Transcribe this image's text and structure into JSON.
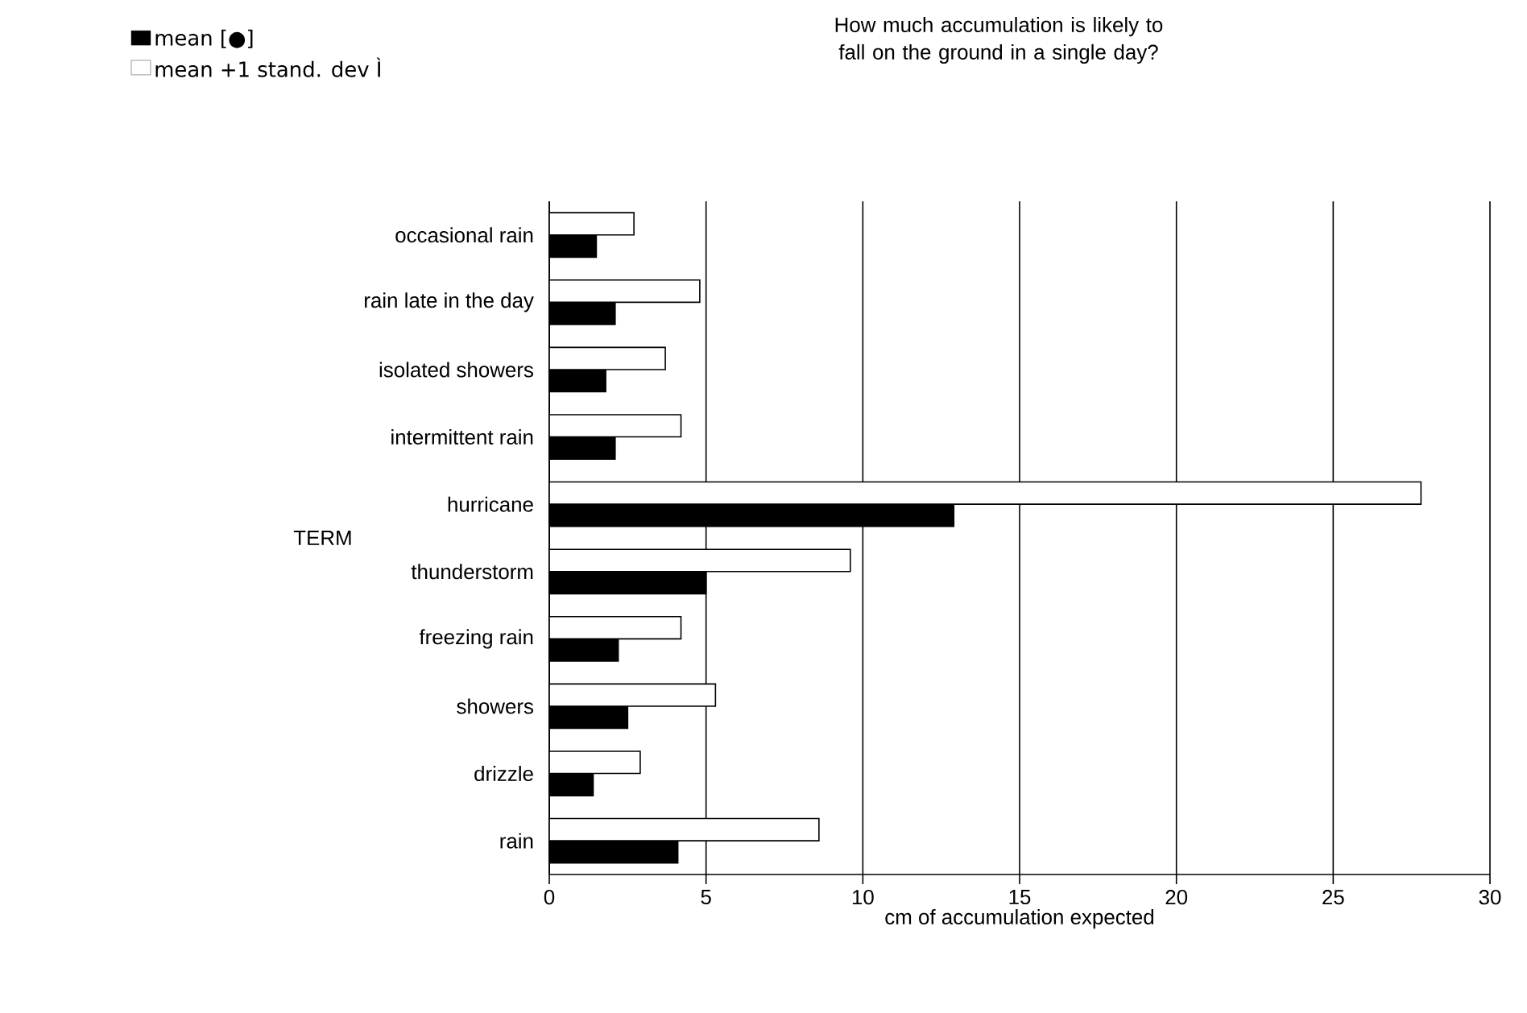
{
  "chart_data": {
    "type": "bar",
    "orientation": "horizontal",
    "title": "How much accumulation is likely to fall on the ground in a single day?",
    "xlabel": "cm of accumulation expected",
    "ylabel": "TERM",
    "categories": [
      "occasional rain",
      "rain late in the day",
      "isolated showers",
      "intermittent rain",
      "hurricane",
      "thunderstorm",
      "freezing rain",
      "showers",
      "drizzle",
      "rain"
    ],
    "series": [
      {
        "name": "mean [●]",
        "color": "#000000",
        "values": [
          1.5,
          2.1,
          1.8,
          2.1,
          12.9,
          5.0,
          2.2,
          2.5,
          1.4,
          4.1
        ]
      },
      {
        "name": "mean +1 stand. dev Ì",
        "color": "#ffffff",
        "values": [
          2.7,
          4.8,
          3.7,
          4.2,
          27.8,
          9.6,
          4.2,
          5.3,
          2.9,
          8.6
        ]
      }
    ],
    "xlim": [
      0,
      30
    ],
    "xticks": [
      0,
      5,
      10,
      15,
      20,
      25,
      30
    ],
    "grid": "x",
    "legend": "top left"
  }
}
